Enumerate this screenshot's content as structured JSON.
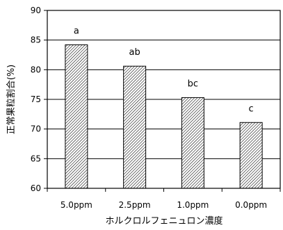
{
  "chart_data": {
    "type": "bar",
    "categories": [
      "5.0ppm",
      "2.5ppm",
      "1.0ppm",
      "0.0ppm"
    ],
    "values": [
      84.2,
      80.6,
      75.3,
      71.1
    ],
    "significance_labels": [
      "a",
      "ab",
      "bc",
      "c"
    ],
    "title": "",
    "xlabel": "ホルクロルフェニュロン濃度",
    "ylabel": "正常果粒割合(%)",
    "ylim": [
      60,
      90
    ],
    "yticks": [
      60,
      65,
      70,
      75,
      80,
      85,
      90
    ],
    "grid": true,
    "bar_fill": "diagonal-hatch",
    "colors": {
      "bar_edge": "#000000",
      "hatch": "#000000",
      "grid": "#000000",
      "background": "#ffffff"
    }
  }
}
